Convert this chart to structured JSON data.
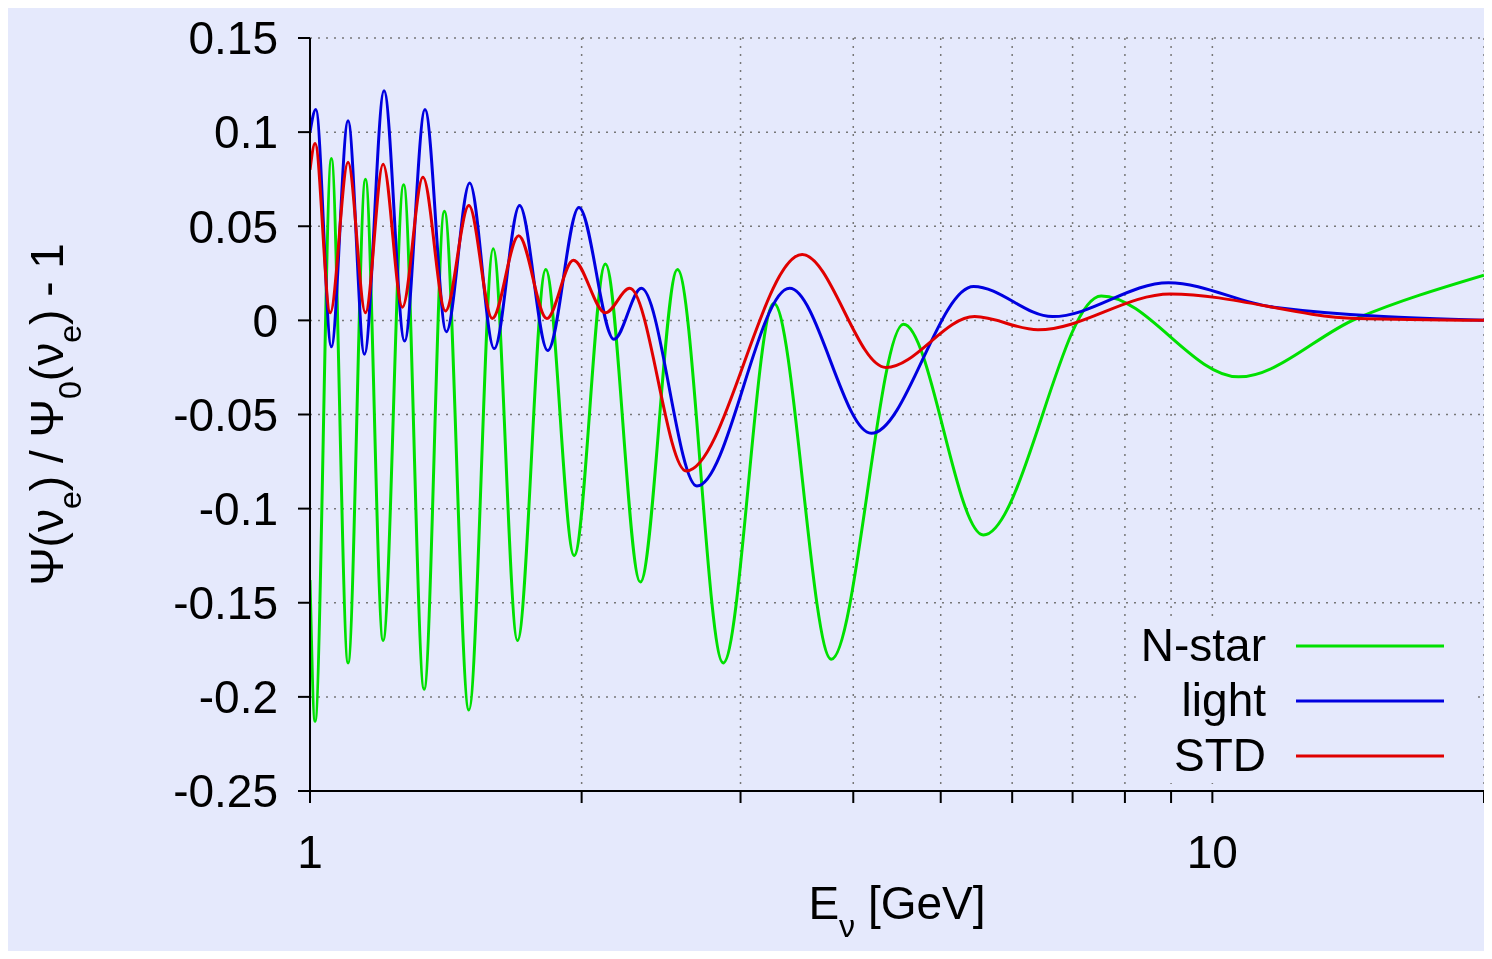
{
  "chart_data": {
    "type": "line",
    "xlabel": "E$_{ν}$ [GeV]",
    "ylabel": "Ψ(ν$_{e}$) / Ψ$_{0}$(ν$_{e}$) - 1",
    "log": "x",
    "grid": true,
    "legend": "bottom right",
    "line_style": "solid",
    "marker": "none",
    "xlim": [
      1,
      20
    ],
    "xticks": [
      1,
      {
        "value": 2,
        "label": null
      },
      {
        "value": 3,
        "label": null
      },
      {
        "value": 4,
        "label": null
      },
      {
        "value": 5,
        "label": null
      },
      {
        "value": 6,
        "label": null
      },
      {
        "value": 7,
        "label": null
      },
      {
        "value": 8,
        "label": null
      },
      {
        "value": 9,
        "label": null
      },
      10,
      {
        "value": 20,
        "label": null
      }
    ],
    "ylim": [
      -0.25,
      0.15
    ],
    "yticks": [
      -0.25,
      -0.2,
      -0.15,
      -0.1,
      -0.05,
      0,
      0.05,
      0.1,
      0.15
    ],
    "series": [
      {
        "name": "N-star",
        "color": "#00e000",
        "x": [
          1,
          1.013,
          1.056,
          1.102,
          1.152,
          1.205,
          1.27,
          1.338,
          1.409,
          1.5,
          1.596,
          1.698,
          1.825,
          1.962,
          2.125,
          2.323,
          2.554,
          2.87,
          3.266,
          3.782,
          4.547,
          5.575,
          7.53,
          10.69,
          14.45,
          20
        ],
        "values": [
          -0.138,
          -0.213,
          0.086,
          -0.182,
          0.075,
          -0.17,
          0.072,
          -0.196,
          0.058,
          -0.207,
          0.038,
          -0.17,
          0.027,
          -0.125,
          0.03,
          -0.139,
          0.027,
          -0.182,
          0.009,
          -0.18,
          -0.002,
          -0.114,
          0.013,
          -0.03,
          0.001,
          0.024
        ]
      },
      {
        "name": "light",
        "color": "#0000e0",
        "x": [
          1,
          1.015,
          1.056,
          1.102,
          1.149,
          1.208,
          1.273,
          1.341,
          1.416,
          1.503,
          1.6,
          1.707,
          1.834,
          1.986,
          2.172,
          2.329,
          2.684,
          3.4,
          4.188,
          5.438,
          6.65,
          8.94,
          11.7,
          20
        ],
        "values": [
          0.1,
          0.112,
          -0.014,
          0.106,
          -0.018,
          0.122,
          -0.011,
          0.112,
          -0.006,
          0.073,
          -0.015,
          0.061,
          -0.016,
          0.06,
          -0.01,
          0.017,
          -0.088,
          0.017,
          -0.06,
          0.018,
          0.002,
          0.02,
          0.007,
          0
        ]
      },
      {
        "name": "STD",
        "color": "#e00000",
        "x": [
          1,
          1.013,
          1.053,
          1.102,
          1.152,
          1.205,
          1.266,
          1.334,
          1.413,
          1.5,
          1.592,
          1.703,
          1.83,
          1.958,
          2.125,
          2.261,
          2.611,
          3.511,
          4.347,
          5.452,
          6.408,
          8.985,
          14.45,
          20
        ],
        "values": [
          0.08,
          0.094,
          0.004,
          0.084,
          0.004,
          0.083,
          0.007,
          0.076,
          0.005,
          0.061,
          0.001,
          0.045,
          0.001,
          0.032,
          0.004,
          0.017,
          -0.08,
          0.035,
          -0.025,
          0.002,
          -0.005,
          0.014,
          0.001,
          0
        ]
      }
    ]
  }
}
